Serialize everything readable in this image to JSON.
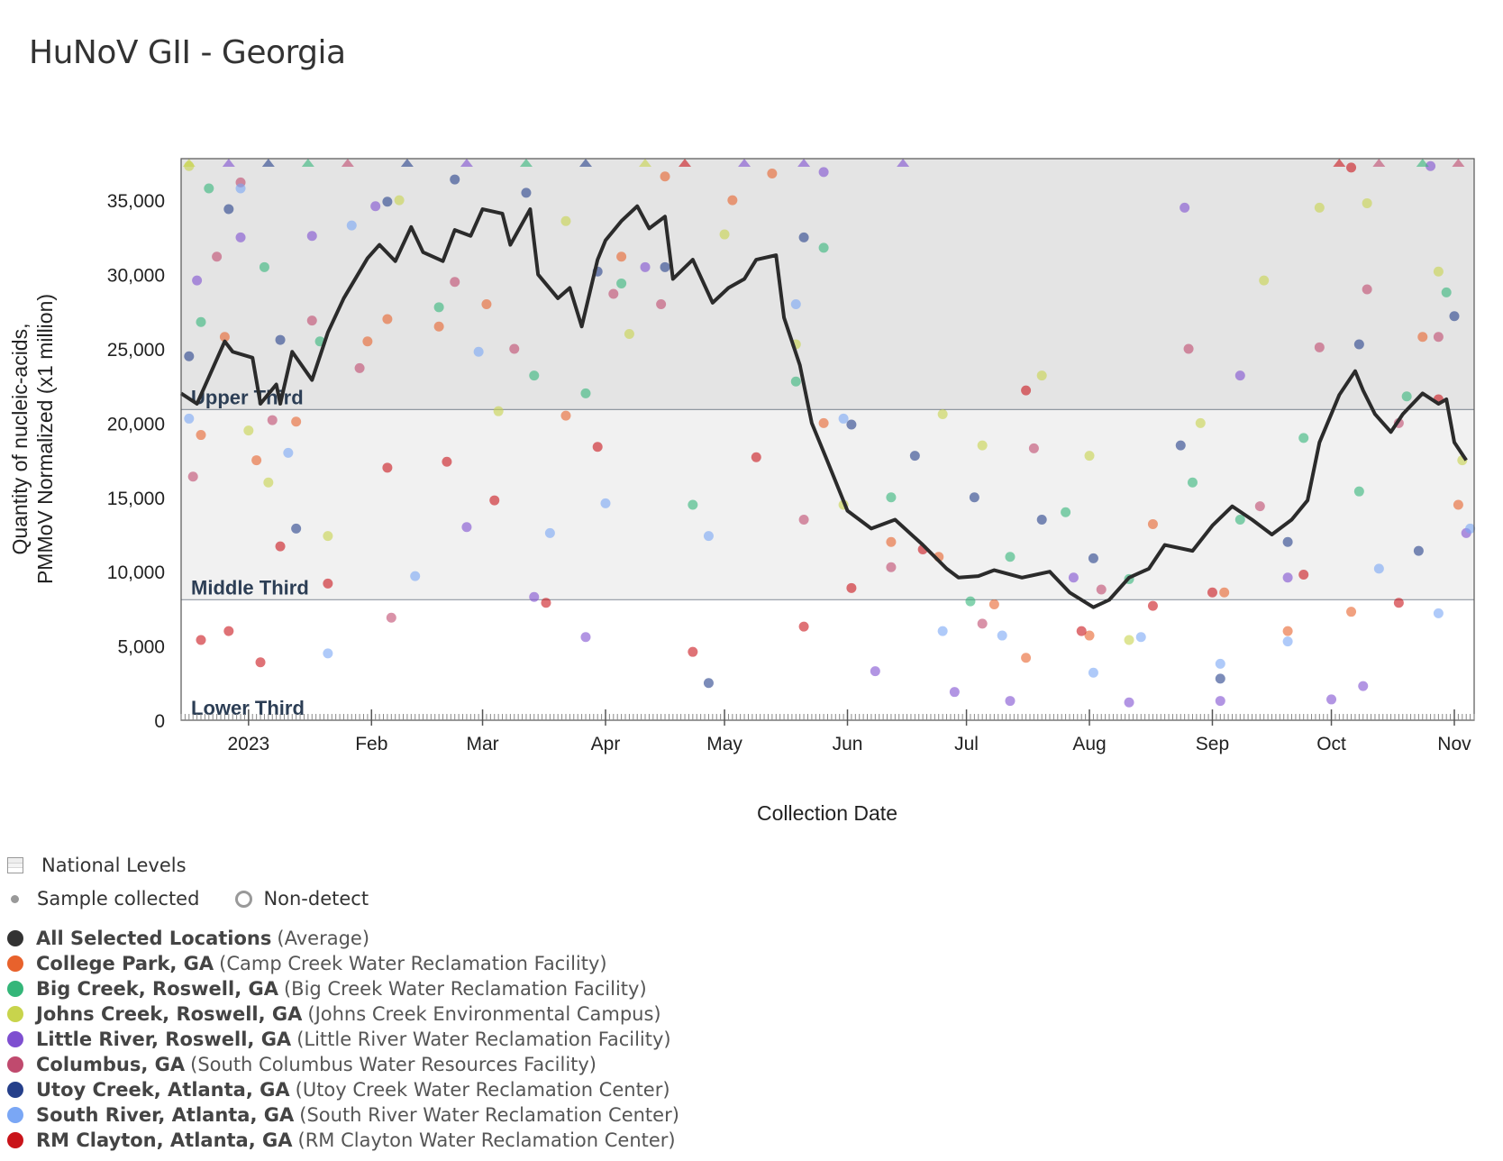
{
  "title": "HuNoV GII - Georgia",
  "legend": {
    "national_levels": "National Levels",
    "sample_collected": "Sample collected",
    "non_detect": "Non-detect",
    "entries": [
      {
        "name": "All Selected Locations",
        "detail": "(Average)",
        "color": "#333333"
      },
      {
        "name": "College Park, GA",
        "detail": "(Camp Creek Water Reclamation Facility)",
        "color": "#e8622c"
      },
      {
        "name": "Big Creek, Roswell, GA",
        "detail": "(Big Creek Water Reclamation Facility)",
        "color": "#34b679"
      },
      {
        "name": "Johns Creek, Roswell, GA",
        "detail": "(Johns Creek Environmental Campus)",
        "color": "#c8d44c"
      },
      {
        "name": "Little River, Roswell, GA",
        "detail": "(Little River Water Reclamation Facility)",
        "color": "#7e4fd0"
      },
      {
        "name": "Columbus, GA",
        "detail": "(South Columbus Water Resources Facility)",
        "color": "#c04a6e"
      },
      {
        "name": "Utoy Creek, Atlanta, GA",
        "detail": "(Utoy Creek Water Reclamation Center)",
        "color": "#253f8a"
      },
      {
        "name": "South River, Atlanta, GA",
        "detail": "(South River Water Reclamation Center)",
        "color": "#7aa7f5"
      },
      {
        "name": "RM Clayton, Atlanta, GA",
        "detail": "(RM Clayton Water Reclamation Center)",
        "color": "#c9141a"
      }
    ]
  },
  "chart_data": {
    "type": "line+scatter",
    "title": "HuNoV GII - Georgia",
    "xlabel": "Collection Date",
    "ylabel_lines": [
      "Quantity of nucleic-acids,",
      "PMMoV Normalized (x1 million)"
    ],
    "x_unit": "days since 2023-01-01",
    "xlim": [
      -17,
      309
    ],
    "ylim": [
      0,
      37800
    ],
    "yticks": [
      0,
      5000,
      10000,
      15000,
      20000,
      25000,
      30000,
      35000
    ],
    "ytick_labels": [
      "0",
      "5,000",
      "10,000",
      "15,000",
      "20,000",
      "25,000",
      "30,000",
      "35,000"
    ],
    "xticks": [
      0,
      31,
      59,
      90,
      120,
      151,
      181,
      212,
      243,
      273,
      304
    ],
    "xtick_labels": [
      "2023",
      "Feb",
      "Mar",
      "Apr",
      "May",
      "Jun",
      "Jul",
      "Aug",
      "Sep",
      "Oct",
      "Nov"
    ],
    "bands": [
      {
        "label": "Upper Third",
        "from": 20900,
        "to": 37800,
        "color": "#e4e4e4"
      },
      {
        "label": "Middle Third",
        "from": 8100,
        "to": 20900,
        "color": "#f1f1f1"
      },
      {
        "label": "Lower Third",
        "from": 0,
        "to": 8100,
        "color": "#ffffff"
      }
    ],
    "average": {
      "name": "All Selected Locations",
      "points": [
        [
          -17,
          22000
        ],
        [
          -13,
          21300
        ],
        [
          -6,
          25500
        ],
        [
          -4,
          24800
        ],
        [
          1,
          24400
        ],
        [
          3,
          21300
        ],
        [
          7,
          22600
        ],
        [
          8,
          21300
        ],
        [
          11,
          24800
        ],
        [
          16,
          22900
        ],
        [
          20,
          26100
        ],
        [
          24,
          28400
        ],
        [
          30,
          31100
        ],
        [
          33,
          32000
        ],
        [
          37,
          30900
        ],
        [
          41,
          33200
        ],
        [
          44,
          31500
        ],
        [
          49,
          30900
        ],
        [
          52,
          33000
        ],
        [
          56,
          32600
        ],
        [
          59,
          34400
        ],
        [
          64,
          34100
        ],
        [
          66,
          32000
        ],
        [
          71,
          34400
        ],
        [
          73,
          30000
        ],
        [
          78,
          28400
        ],
        [
          81,
          29100
        ],
        [
          84,
          26500
        ],
        [
          88,
          31000
        ],
        [
          90,
          32300
        ],
        [
          94,
          33600
        ],
        [
          98,
          34600
        ],
        [
          101,
          33100
        ],
        [
          105,
          33900
        ],
        [
          107,
          29700
        ],
        [
          112,
          31000
        ],
        [
          117,
          28100
        ],
        [
          121,
          29100
        ],
        [
          125,
          29700
        ],
        [
          128,
          31000
        ],
        [
          133,
          31300
        ],
        [
          135,
          27100
        ],
        [
          139,
          23900
        ],
        [
          142,
          20000
        ],
        [
          146,
          17400
        ],
        [
          151,
          14100
        ],
        [
          157,
          12900
        ],
        [
          163,
          13500
        ],
        [
          170,
          11800
        ],
        [
          176,
          10200
        ],
        [
          179,
          9600
        ],
        [
          184,
          9700
        ],
        [
          188,
          10100
        ],
        [
          195,
          9600
        ],
        [
          202,
          10000
        ],
        [
          207,
          8600
        ],
        [
          213,
          7600
        ],
        [
          217,
          8100
        ],
        [
          222,
          9600
        ],
        [
          227,
          10200
        ],
        [
          231,
          11800
        ],
        [
          238,
          11400
        ],
        [
          243,
          13100
        ],
        [
          248,
          14400
        ],
        [
          253,
          13500
        ],
        [
          258,
          12500
        ],
        [
          263,
          13500
        ],
        [
          267,
          14800
        ],
        [
          270,
          18700
        ],
        [
          275,
          21900
        ],
        [
          279,
          23500
        ],
        [
          281,
          22200
        ],
        [
          284,
          20600
        ],
        [
          288,
          19400
        ],
        [
          291,
          20600
        ],
        [
          296,
          22000
        ],
        [
          300,
          21300
        ],
        [
          302,
          21600
        ],
        [
          304,
          18700
        ],
        [
          306,
          17900
        ],
        [
          307,
          17500
        ]
      ]
    },
    "series": [
      {
        "name": "College Park, GA",
        "color": "#e8622c",
        "points": [
          [
            -12,
            19200
          ],
          [
            -6,
            25800
          ],
          [
            2,
            17500
          ],
          [
            12,
            20100
          ],
          [
            30,
            25500
          ],
          [
            35,
            27000
          ],
          [
            48,
            26500
          ],
          [
            60,
            28000
          ],
          [
            80,
            20500
          ],
          [
            94,
            31200
          ],
          [
            105,
            36600
          ],
          [
            122,
            35000
          ],
          [
            132,
            36800
          ],
          [
            145,
            20000
          ],
          [
            162,
            12000
          ],
          [
            174,
            11000
          ],
          [
            188,
            7800
          ],
          [
            196,
            4200
          ],
          [
            212,
            5700
          ],
          [
            228,
            13200
          ],
          [
            246,
            8600
          ],
          [
            262,
            6000
          ],
          [
            278,
            7300
          ],
          [
            296,
            25800
          ],
          [
            305,
            14500
          ]
        ]
      },
      {
        "name": "Big Creek, Roswell, GA",
        "color": "#34b679",
        "points": [
          [
            -10,
            35800
          ],
          [
            -12,
            26800
          ],
          [
            4,
            30500
          ],
          [
            18,
            25500
          ],
          [
            48,
            27800
          ],
          [
            72,
            23200
          ],
          [
            85,
            22000
          ],
          [
            94,
            29400
          ],
          [
            112,
            14500
          ],
          [
            138,
            22800
          ],
          [
            145,
            31800
          ],
          [
            162,
            15000
          ],
          [
            182,
            8000
          ],
          [
            192,
            11000
          ],
          [
            206,
            14000
          ],
          [
            222,
            9500
          ],
          [
            238,
            16000
          ],
          [
            250,
            13500
          ],
          [
            266,
            19000
          ],
          [
            280,
            15400
          ],
          [
            292,
            21800
          ],
          [
            302,
            28800
          ]
        ]
      },
      {
        "name": "Johns Creek, Roswell, GA",
        "color": "#c8d44c",
        "points": [
          [
            -15,
            37300
          ],
          [
            0,
            19500
          ],
          [
            5,
            16000
          ],
          [
            20,
            12400
          ],
          [
            38,
            35000
          ],
          [
            63,
            20800
          ],
          [
            80,
            33600
          ],
          [
            96,
            26000
          ],
          [
            120,
            32700
          ],
          [
            138,
            25300
          ],
          [
            150,
            14500
          ],
          [
            175,
            20600
          ],
          [
            185,
            18500
          ],
          [
            200,
            23200
          ],
          [
            212,
            17800
          ],
          [
            222,
            5400
          ],
          [
            240,
            20000
          ],
          [
            256,
            29600
          ],
          [
            270,
            34500
          ],
          [
            282,
            34800
          ],
          [
            300,
            30200
          ],
          [
            306,
            17500
          ]
        ]
      },
      {
        "name": "Little River, Roswell, GA",
        "color": "#7e4fd0",
        "points": [
          [
            -13,
            29600
          ],
          [
            -2,
            32500
          ],
          [
            16,
            32600
          ],
          [
            32,
            34600
          ],
          [
            55,
            13000
          ],
          [
            72,
            8300
          ],
          [
            85,
            5600
          ],
          [
            100,
            30500
          ],
          [
            145,
            36900
          ],
          [
            158,
            3300
          ],
          [
            178,
            1900
          ],
          [
            192,
            1300
          ],
          [
            208,
            9600
          ],
          [
            222,
            1200
          ],
          [
            236,
            34500
          ],
          [
            245,
            1300
          ],
          [
            250,
            23200
          ],
          [
            262,
            9600
          ],
          [
            273,
            1400
          ],
          [
            281,
            2300
          ],
          [
            298,
            37300
          ],
          [
            307,
            12600
          ]
        ]
      },
      {
        "name": "Columbus, GA",
        "color": "#c04a6e",
        "points": [
          [
            -14,
            16400
          ],
          [
            -8,
            31200
          ],
          [
            -2,
            36200
          ],
          [
            6,
            20200
          ],
          [
            16,
            26900
          ],
          [
            28,
            23700
          ],
          [
            36,
            6900
          ],
          [
            52,
            29500
          ],
          [
            67,
            25000
          ],
          [
            92,
            28700
          ],
          [
            104,
            28000
          ],
          [
            140,
            13500
          ],
          [
            162,
            10300
          ],
          [
            185,
            6500
          ],
          [
            198,
            18300
          ],
          [
            215,
            8800
          ],
          [
            237,
            25000
          ],
          [
            255,
            14400
          ],
          [
            270,
            25100
          ],
          [
            282,
            29000
          ],
          [
            290,
            20000
          ],
          [
            300,
            25800
          ]
        ]
      },
      {
        "name": "Utoy Creek, Atlanta, GA",
        "color": "#253f8a",
        "points": [
          [
            -15,
            24500
          ],
          [
            -5,
            34400
          ],
          [
            8,
            25600
          ],
          [
            12,
            12900
          ],
          [
            35,
            34900
          ],
          [
            52,
            36400
          ],
          [
            70,
            35500
          ],
          [
            88,
            30200
          ],
          [
            105,
            30500
          ],
          [
            116,
            2500
          ],
          [
            140,
            32500
          ],
          [
            152,
            19900
          ],
          [
            168,
            17800
          ],
          [
            183,
            15000
          ],
          [
            200,
            13500
          ],
          [
            213,
            10900
          ],
          [
            235,
            18500
          ],
          [
            245,
            2800
          ],
          [
            262,
            12000
          ],
          [
            280,
            25300
          ],
          [
            295,
            11400
          ],
          [
            304,
            27200
          ]
        ]
      },
      {
        "name": "South River, Atlanta, GA",
        "color": "#7aa7f5",
        "points": [
          [
            -15,
            20300
          ],
          [
            -2,
            35800
          ],
          [
            10,
            18000
          ],
          [
            20,
            4500
          ],
          [
            26,
            33300
          ],
          [
            42,
            9700
          ],
          [
            58,
            24800
          ],
          [
            76,
            12600
          ],
          [
            90,
            14600
          ],
          [
            116,
            12400
          ],
          [
            138,
            28000
          ],
          [
            150,
            20300
          ],
          [
            175,
            6000
          ],
          [
            190,
            5700
          ],
          [
            213,
            3200
          ],
          [
            225,
            5600
          ],
          [
            245,
            3800
          ],
          [
            262,
            5300
          ],
          [
            285,
            10200
          ],
          [
            300,
            7200
          ],
          [
            308,
            12900
          ]
        ]
      },
      {
        "name": "RM Clayton, Atlanta, GA",
        "color": "#c9141a",
        "points": [
          [
            -12,
            5400
          ],
          [
            -5,
            6000
          ],
          [
            3,
            3900
          ],
          [
            8,
            11700
          ],
          [
            20,
            9200
          ],
          [
            35,
            17000
          ],
          [
            50,
            17400
          ],
          [
            62,
            14800
          ],
          [
            75,
            7900
          ],
          [
            88,
            18400
          ],
          [
            112,
            4600
          ],
          [
            128,
            17700
          ],
          [
            140,
            6300
          ],
          [
            152,
            8900
          ],
          [
            170,
            11500
          ],
          [
            196,
            22200
          ],
          [
            210,
            6000
          ],
          [
            228,
            7700
          ],
          [
            243,
            8600
          ],
          [
            266,
            9800
          ],
          [
            278,
            37200
          ],
          [
            290,
            7900
          ],
          [
            300,
            21600
          ]
        ]
      }
    ]
  }
}
